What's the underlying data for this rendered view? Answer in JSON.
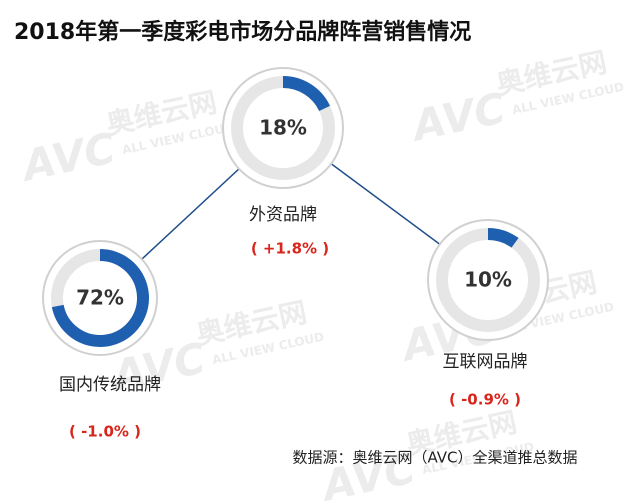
{
  "chart_data": {
    "type": "donut-gauge",
    "title": "2018年第一季度彩电市场分品牌阵营销售情况",
    "categories": [
      "国内传统品牌",
      "外资品牌",
      "互联网品牌"
    ],
    "values": [
      72,
      18,
      10
    ],
    "value_labels": [
      "72%",
      "18%",
      "10%"
    ],
    "changes": [
      -1.0,
      1.8,
      -0.9
    ],
    "change_labels": [
      "( -1.0% )",
      "( +1.8% )",
      "( -0.9% )"
    ],
    "color": "#1f5fb0",
    "track_color": "#e6e6e6",
    "change_color": "#d9261c",
    "source": "数据源：奥维云网（AVC）全渠道推总数据",
    "watermark": {
      "logo": "AVC",
      "name": "奥维云网",
      "subtitle": "ALL VIEW CLOUD"
    }
  }
}
